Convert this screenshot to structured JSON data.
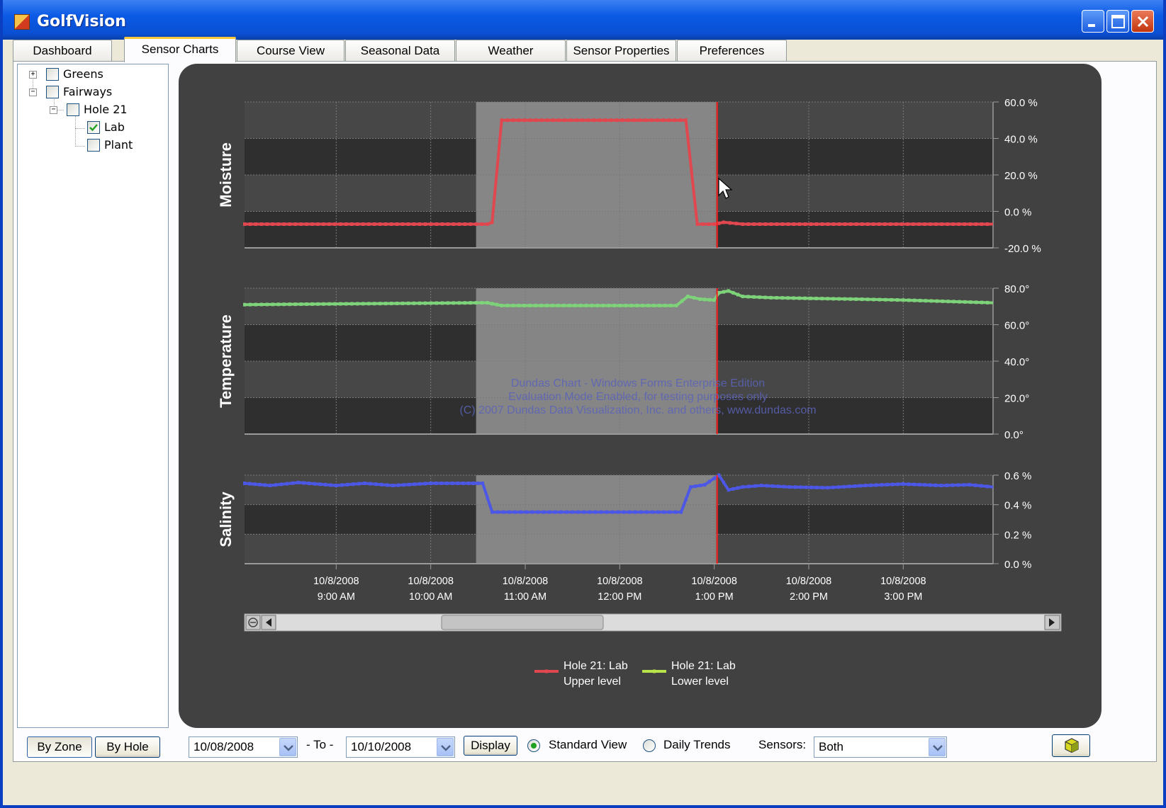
{
  "window": {
    "title": "GolfVision"
  },
  "tabs": [
    {
      "label": "Dashboard",
      "active": false
    },
    {
      "label": "Sensor Charts",
      "active": true
    },
    {
      "label": "Course View",
      "active": false
    },
    {
      "label": "Seasonal Data",
      "active": false
    },
    {
      "label": "Weather",
      "active": false
    },
    {
      "label": "Sensor Properties",
      "active": false
    },
    {
      "label": "Preferences",
      "active": false
    }
  ],
  "tree": [
    {
      "label": "Greens",
      "expanded": false,
      "checked": false
    },
    {
      "label": "Fairways",
      "expanded": true,
      "checked": false
    },
    {
      "label": "Hole 21",
      "expanded": true,
      "checked": false
    },
    {
      "label": "Lab",
      "checked": true
    },
    {
      "label": "Plant",
      "checked": false
    }
  ],
  "bottom": {
    "by_zone": "By Zone",
    "by_hole": "By Hole",
    "from_date": "10/08/2008",
    "to_label": "- To -",
    "to_date": "10/10/2008",
    "display": "Display",
    "standard_view": "Standard View",
    "daily_trends": "Daily Trends",
    "view_selected": "Standard View",
    "sensors_label": "Sensors:",
    "sensors_value": "Both"
  },
  "watermark": [
    "Dundas Chart - Windows Forms Enterprise Edition",
    "Evaluation Mode Enabled, for testing purposes only",
    "(C) 2007 Dundas Data Visualization, Inc. and others, www.dundas.com"
  ],
  "colors": {
    "moisture": "#e0474f",
    "temperature": "#7ed37a",
    "salinity": "#4d57e6",
    "cursor": "#ff2020",
    "panel_bg": "#414141"
  },
  "chart_data": {
    "type": "line",
    "x_ticks": [
      {
        "date": "10/8/2008",
        "time": "9:00 AM"
      },
      {
        "date": "10/8/2008",
        "time": "10:00 AM"
      },
      {
        "date": "10/8/2008",
        "time": "11:00 AM"
      },
      {
        "date": "10/8/2008",
        "time": "12:00 PM"
      },
      {
        "date": "10/8/2008",
        "time": "1:00 PM"
      },
      {
        "date": "10/8/2008",
        "time": "2:00 PM"
      },
      {
        "date": "10/8/2008",
        "time": "3:00 PM"
      }
    ],
    "x_range_hours": [
      8.03,
      15.95
    ],
    "selection": {
      "from": 10.48,
      "to": 13.02
    },
    "cursor": 13.03,
    "panels": [
      {
        "title": "Moisture",
        "y_ticks": [
          "60.0 %",
          "40.0 %",
          "20.0 %",
          "0.0 %",
          "-20.0 %"
        ],
        "ylim": [
          -20,
          60
        ],
        "series_key": "moisture",
        "points": [
          [
            8.03,
            -7
          ],
          [
            10.6,
            -7
          ],
          [
            10.65,
            -6
          ],
          [
            10.75,
            50
          ],
          [
            12.7,
            50
          ],
          [
            12.82,
            -7
          ],
          [
            13.0,
            -7
          ],
          [
            13.1,
            -6
          ],
          [
            13.3,
            -7
          ],
          [
            15.95,
            -7
          ]
        ]
      },
      {
        "title": "Temperature",
        "y_ticks": [
          "80.0°",
          "60.0°",
          "40.0°",
          "20.0°",
          "0.0°"
        ],
        "ylim": [
          0,
          80
        ],
        "series_key": "temperature",
        "points": [
          [
            8.03,
            71
          ],
          [
            10.48,
            72
          ],
          [
            10.6,
            72
          ],
          [
            10.75,
            70.5
          ],
          [
            12.6,
            70.5
          ],
          [
            12.72,
            75.5
          ],
          [
            12.85,
            74
          ],
          [
            13.0,
            73.5
          ],
          [
            13.05,
            77.5
          ],
          [
            13.15,
            78.5
          ],
          [
            13.3,
            75.5
          ],
          [
            13.6,
            74.8
          ],
          [
            14.5,
            74
          ],
          [
            15.0,
            73.5
          ],
          [
            15.95,
            72
          ]
        ]
      },
      {
        "title": "Salinity",
        "y_ticks": [
          "0.6 %",
          "0.4 %",
          "0.2 %",
          "0.0 %"
        ],
        "ylim": [
          0,
          0.6
        ],
        "series_key": "salinity",
        "points": [
          [
            8.03,
            0.545
          ],
          [
            8.3,
            0.53
          ],
          [
            8.6,
            0.55
          ],
          [
            9.0,
            0.53
          ],
          [
            9.3,
            0.545
          ],
          [
            9.6,
            0.53
          ],
          [
            10.0,
            0.545
          ],
          [
            10.4,
            0.545
          ],
          [
            10.55,
            0.545
          ],
          [
            10.65,
            0.35
          ],
          [
            12.65,
            0.35
          ],
          [
            12.75,
            0.52
          ],
          [
            12.9,
            0.535
          ],
          [
            13.05,
            0.6
          ],
          [
            13.15,
            0.5
          ],
          [
            13.3,
            0.52
          ],
          [
            13.5,
            0.53
          ],
          [
            13.8,
            0.52
          ],
          [
            14.2,
            0.515
          ],
          [
            14.6,
            0.53
          ],
          [
            15.0,
            0.54
          ],
          [
            15.4,
            0.53
          ],
          [
            15.7,
            0.535
          ],
          [
            15.95,
            0.52
          ]
        ]
      }
    ],
    "legend": [
      {
        "line1": "Hole 21: Lab",
        "line2": "Upper level",
        "color": "#e0474f"
      },
      {
        "line1": "Hole 21: Lab",
        "line2": "Lower level",
        "color": "#b9e34a"
      }
    ]
  }
}
